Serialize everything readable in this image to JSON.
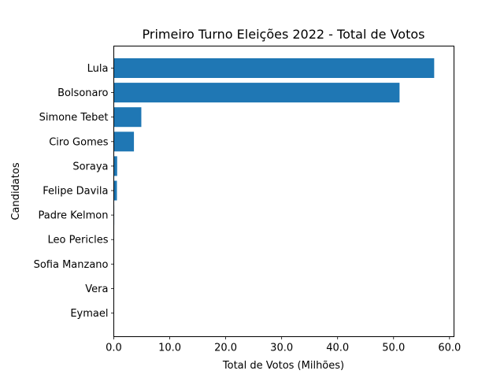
{
  "chart_data": {
    "type": "bar",
    "orientation": "horizontal",
    "title": "Primeiro Turno Eleições 2022 - Total de Votos",
    "xlabel": "Total de Votos (Milhões)",
    "ylabel": "Candidatos",
    "categories": [
      "Lula",
      "Bolsonaro",
      "Simone Tebet",
      "Ciro Gomes",
      "Soraya",
      "Felipe Davila",
      "Padre Kelmon",
      "Leo Pericles",
      "Sofia Manzano",
      "Vera",
      "Eymael"
    ],
    "values": [
      57.26,
      51.07,
      4.92,
      3.6,
      0.6,
      0.56,
      0.08,
      0.05,
      0.05,
      0.03,
      0.02
    ],
    "xlim": [
      0,
      60.8
    ],
    "xticks": [
      0.0,
      10.0,
      20.0,
      30.0,
      40.0,
      50.0,
      60.0
    ],
    "xtick_labels": [
      "0.0",
      "10.0",
      "20.0",
      "30.0",
      "40.0",
      "50.0",
      "60.0"
    ],
    "bar_color": "#1f77b4",
    "grid": false,
    "legend": "none"
  }
}
